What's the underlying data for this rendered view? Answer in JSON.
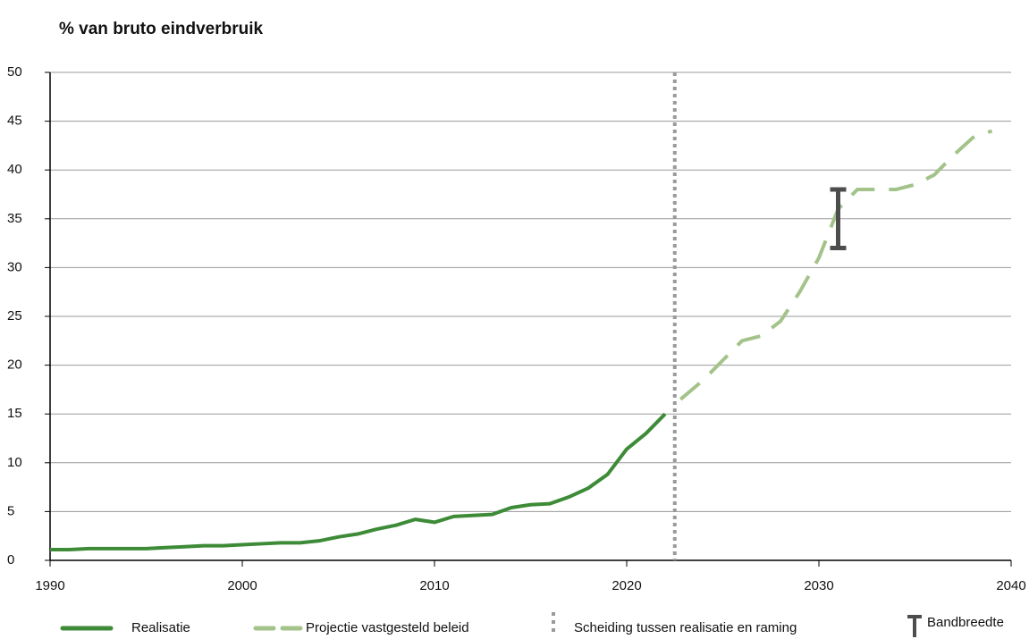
{
  "chart_data": {
    "type": "line",
    "title": "% van bruto eindverbruik",
    "xlim": [
      1990,
      2040
    ],
    "xticks": [
      1990,
      2000,
      2010,
      2020,
      2030,
      2040
    ],
    "ylim": [
      0,
      50
    ],
    "yticks": [
      0,
      5,
      10,
      15,
      20,
      25,
      30,
      35,
      40,
      45,
      50
    ],
    "grid": true,
    "series": [
      {
        "name": "Realisatie",
        "color": "#3d8b37",
        "dashed": false,
        "x": [
          1990,
          1991,
          1992,
          1993,
          1994,
          1995,
          1996,
          1997,
          1998,
          1999,
          2000,
          2001,
          2002,
          2003,
          2004,
          2005,
          2006,
          2007,
          2008,
          2009,
          2010,
          2011,
          2012,
          2013,
          2014,
          2015,
          2016,
          2017,
          2018,
          2019,
          2020,
          2021,
          2022
        ],
        "values": [
          1.1,
          1.1,
          1.2,
          1.2,
          1.2,
          1.2,
          1.3,
          1.4,
          1.5,
          1.5,
          1.6,
          1.7,
          1.8,
          1.8,
          2.0,
          2.4,
          2.7,
          3.2,
          3.6,
          4.2,
          3.9,
          4.5,
          4.6,
          4.7,
          5.4,
          5.7,
          5.8,
          6.5,
          7.4,
          8.8,
          11.4,
          13.0,
          15.0
        ]
      },
      {
        "name": "Projectie vastgesteld beleid",
        "color": "#a3c38a",
        "dashed": true,
        "x": [
          2022.8,
          2024,
          2025,
          2026,
          2027,
          2028,
          2029,
          2030,
          2031,
          2032,
          2033,
          2034,
          2035,
          2036,
          2037,
          2038,
          2039
        ],
        "values": [
          16.5,
          18.5,
          20.5,
          22.5,
          23,
          24.5,
          27.5,
          31,
          36,
          38,
          38,
          38,
          38.5,
          39.5,
          41.5,
          43.3,
          44
        ]
      }
    ],
    "separator": {
      "name": "Scheiding tussen realisatie en raming",
      "x": 2022.5,
      "color": "#9a9a9a"
    },
    "range": {
      "name": "Bandbreedte",
      "x": 2031,
      "low": 32,
      "high": 38,
      "color": "#4d4d4d"
    }
  }
}
